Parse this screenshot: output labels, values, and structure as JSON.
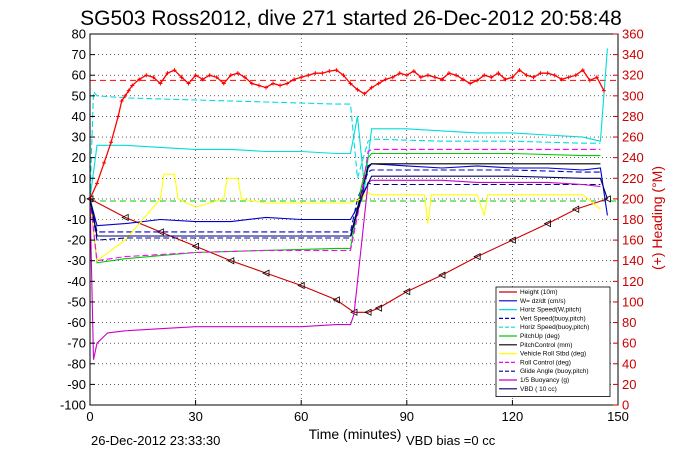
{
  "chart_data": {
    "type": "line",
    "title": "SG503 Ross2012, dive 271 started 26-Dec-2012 20:58:48",
    "xlabel": "Time (minutes)",
    "ylabel_right": "(+) Heading (°M)",
    "footer_left": "26-Dec-2012 23:33:30",
    "footer_right": "VBD bias =0 cc",
    "xlim": [
      0,
      150
    ],
    "ylim": [
      -100,
      80
    ],
    "y2lim": [
      0,
      360
    ],
    "xticks": [
      "0",
      "30",
      "60",
      "90",
      "120",
      "150"
    ],
    "yticks": [
      "-100",
      "-90",
      "-80",
      "-70",
      "-60",
      "-50",
      "-40",
      "-30",
      "-20",
      "-10",
      "0",
      "10",
      "20",
      "30",
      "40",
      "50",
      "60",
      "70",
      "80"
    ],
    "y2ticks": [
      "0",
      "20",
      "40",
      "60",
      "80",
      "100",
      "120",
      "140",
      "160",
      "180",
      "200",
      "220",
      "240",
      "260",
      "280",
      "300",
      "320",
      "340",
      "360"
    ],
    "grid": true,
    "legend_position": "bottom-right",
    "colors": {
      "heading": "#ff0000",
      "axis_right": "#cc0000"
    },
    "series": [
      {
        "name": "Height (10m)",
        "color": "#cc0000",
        "style": "solid",
        "marker": "triangle",
        "x": [
          0,
          10,
          20,
          30,
          40,
          50,
          60,
          70,
          75,
          79,
          82,
          90,
          100,
          110,
          120,
          130,
          138,
          147
        ],
        "y": [
          0,
          -9,
          -16,
          -23,
          -30,
          -36,
          -42,
          -49,
          -55,
          -55,
          -53,
          -45,
          -37,
          -28,
          -20,
          -12,
          -5,
          0
        ]
      },
      {
        "name": "W= dz/dt (cm/s)",
        "color": "#0000cc",
        "style": "solid",
        "x": [
          0,
          2,
          10,
          20,
          30,
          40,
          50,
          60,
          70,
          74,
          77,
          79,
          80,
          90,
          100,
          110,
          120,
          130,
          140,
          145,
          147
        ],
        "y": [
          0,
          -13,
          -12,
          -10,
          -11,
          -11,
          -9,
          -10,
          -10,
          -10,
          -1,
          15,
          17,
          16,
          15,
          16,
          15,
          15,
          14,
          15,
          -8
        ]
      },
      {
        "name": "Horiz Speed(W,pitch)",
        "color": "#00dddd",
        "style": "solid",
        "x": [
          0,
          2,
          10,
          20,
          30,
          40,
          50,
          60,
          70,
          74,
          76,
          78,
          79,
          80,
          90,
          100,
          110,
          120,
          130,
          140,
          145,
          147
        ],
        "y": [
          0,
          26,
          26,
          25,
          24,
          24,
          23,
          23,
          22,
          22,
          40,
          5,
          20,
          34,
          34,
          33,
          32,
          32,
          31,
          30,
          28,
          73
        ]
      },
      {
        "name": "Vert Speed(buoy,pitch)",
        "color": "#0000cc",
        "style": "dashed",
        "x": [
          0,
          2,
          10,
          30,
          50,
          70,
          74,
          76,
          79,
          80,
          100,
          120,
          140,
          145
        ],
        "y": [
          0,
          -16,
          -16,
          -16,
          -16,
          -16,
          -16,
          0,
          13,
          14,
          14,
          14,
          13,
          13
        ]
      },
      {
        "name": "Horiz Speed(buoy,pitch)",
        "color": "#00dddd",
        "style": "dashed",
        "x": [
          0,
          1,
          2,
          10,
          30,
          50,
          70,
          74,
          76,
          79,
          80,
          100,
          120,
          140,
          145
        ],
        "y": [
          0,
          52,
          50,
          49,
          48,
          47,
          46,
          46,
          10,
          28,
          29,
          28,
          28,
          27,
          27
        ]
      },
      {
        "name": "PitchUp (deg)",
        "color": "#00cc00",
        "style": "solid",
        "x": [
          0,
          2,
          10,
          30,
          50,
          70,
          74,
          77,
          79,
          80,
          100,
          120,
          140,
          145
        ],
        "y": [
          0,
          -31,
          -29,
          -26,
          -25,
          -24,
          -24,
          5,
          20,
          22,
          22,
          22,
          21,
          21
        ]
      },
      {
        "name": "PitchControl (mm)",
        "color": "#000000",
        "style": "solid",
        "x": [
          0,
          2,
          10,
          30,
          50,
          70,
          74,
          77,
          79,
          80,
          100,
          120,
          140,
          145
        ],
        "y": [
          0,
          -18,
          -18,
          -18,
          -18,
          -18,
          -18,
          2,
          16,
          17,
          17,
          17,
          17,
          17
        ]
      },
      {
        "name": "Vehicle Roll Stbd (deg)",
        "color": "#ffff00",
        "style": "solid",
        "x": [
          0,
          2,
          10,
          20,
          21,
          24,
          25,
          30,
          38,
          39,
          42,
          43,
          50,
          70,
          74,
          77,
          79,
          80,
          95,
          96,
          97,
          110,
          112,
          113,
          130,
          140,
          145
        ],
        "y": [
          0,
          -30,
          -20,
          0,
          12,
          12,
          0,
          -4,
          0,
          10,
          10,
          0,
          -2,
          -2,
          -2,
          0,
          3,
          2,
          2,
          -12,
          2,
          2,
          -8,
          2,
          2,
          2,
          -5
        ]
      },
      {
        "name": "Roll Control (deg)",
        "color": "#ff00ff",
        "style": "dashed",
        "x": [
          0,
          2,
          10,
          30,
          50,
          70,
          74,
          77,
          79,
          80,
          100,
          120,
          140,
          145
        ],
        "y": [
          0,
          -30,
          -28,
          -26,
          -25,
          -25,
          -25,
          0,
          23,
          24,
          24,
          24,
          24,
          24
        ]
      },
      {
        "name": "Glide Angle (buoy,pitch)",
        "color": "#000099",
        "style": "dashed",
        "x": [
          0,
          2,
          10,
          30,
          50,
          70,
          74,
          77,
          79,
          80,
          100,
          120,
          140,
          145
        ],
        "y": [
          0,
          -20,
          -19,
          -19,
          -19,
          -19,
          -19,
          0,
          8,
          7,
          7,
          7,
          7,
          7
        ]
      },
      {
        "name": "1/5 Buoyancy (g)",
        "color": "#cc00cc",
        "style": "solid",
        "x": [
          0,
          1,
          2,
          5,
          10,
          20,
          30,
          40,
          50,
          60,
          70,
          74,
          75,
          79,
          80,
          90,
          100,
          110,
          120,
          130,
          140,
          145
        ],
        "y": [
          0,
          -78,
          -70,
          -65,
          -64,
          -63,
          -62,
          -62,
          -62,
          -62,
          -61,
          -61,
          -56,
          8,
          9,
          9,
          9,
          8,
          8,
          8,
          7,
          6
        ]
      },
      {
        "name": "VBD ( 10 cc)",
        "color": "#000066",
        "style": "solid",
        "x": [
          0,
          2,
          10,
          30,
          50,
          70,
          74,
          77,
          80,
          100,
          120,
          140,
          145,
          147
        ],
        "y": [
          0,
          -18,
          -18,
          -18,
          -18,
          -18,
          -18,
          0,
          11,
          11,
          11,
          10,
          10,
          0
        ]
      }
    ],
    "heading_series": {
      "name": "Heading",
      "color": "#ff0000",
      "axis": "right",
      "marker": "plus",
      "x": [
        0,
        2,
        4,
        6,
        8,
        9,
        10,
        11,
        12,
        14,
        16,
        18,
        20,
        22,
        24,
        26,
        28,
        30,
        32,
        34,
        36,
        38,
        40,
        42,
        44,
        46,
        48,
        50,
        52,
        54,
        56,
        58,
        60,
        62,
        64,
        66,
        68,
        70,
        72,
        74,
        76,
        78,
        80,
        82,
        84,
        86,
        88,
        90,
        92,
        94,
        96,
        98,
        100,
        102,
        104,
        106,
        108,
        110,
        112,
        114,
        116,
        118,
        120,
        122,
        124,
        126,
        128,
        130,
        132,
        134,
        136,
        138,
        140,
        142,
        144,
        146
      ],
      "y": [
        200,
        215,
        235,
        255,
        280,
        295,
        300,
        305,
        310,
        316,
        320,
        318,
        312,
        322,
        325,
        318,
        312,
        320,
        316,
        320,
        318,
        312,
        320,
        322,
        318,
        312,
        310,
        308,
        312,
        310,
        312,
        316,
        318,
        320,
        322,
        322,
        324,
        325,
        320,
        312,
        306,
        302,
        308,
        312,
        316,
        318,
        322,
        320,
        324,
        318,
        320,
        318,
        316,
        322,
        320,
        316,
        312,
        315,
        320,
        318,
        322,
        316,
        318,
        325,
        320,
        318,
        322,
        322,
        320,
        316,
        318,
        320,
        325,
        315,
        318,
        305
      ]
    },
    "reference_lines": [
      {
        "color": "#ff0000",
        "style": "dashed",
        "axis": "right",
        "value": 315
      },
      {
        "color": "#00cc00",
        "style": "dashed",
        "axis": "left",
        "value": -1
      }
    ]
  }
}
